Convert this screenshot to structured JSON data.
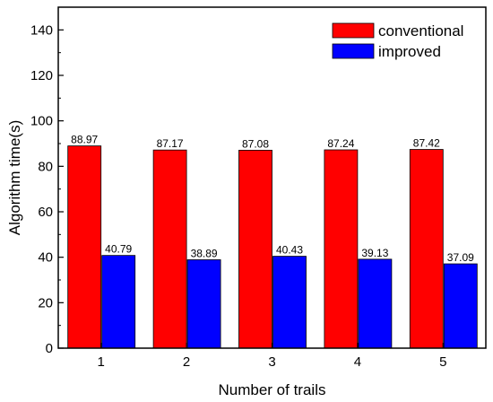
{
  "chart_data": {
    "type": "bar",
    "xlabel": "Number of trails",
    "ylabel": "Algorithm time(s)",
    "ylim": [
      0,
      150
    ],
    "yticks": [
      0,
      20,
      40,
      60,
      80,
      100,
      120,
      140
    ],
    "categories": [
      "1",
      "2",
      "3",
      "4",
      "5"
    ],
    "series": [
      {
        "name": "conventional",
        "color": "#ff0000",
        "values": [
          88.97,
          87.17,
          87.08,
          87.24,
          87.42
        ],
        "labels": [
          "88.97",
          "87.17",
          "87.08",
          "87.24",
          "87.42"
        ]
      },
      {
        "name": "improved",
        "color": "#0000ff",
        "values": [
          40.79,
          38.89,
          40.43,
          39.13,
          37.09
        ],
        "labels": [
          "40.79",
          "38.89",
          "40.43",
          "39.13",
          "37.09"
        ]
      }
    ],
    "legend_position": "top-right",
    "grid": false
  }
}
